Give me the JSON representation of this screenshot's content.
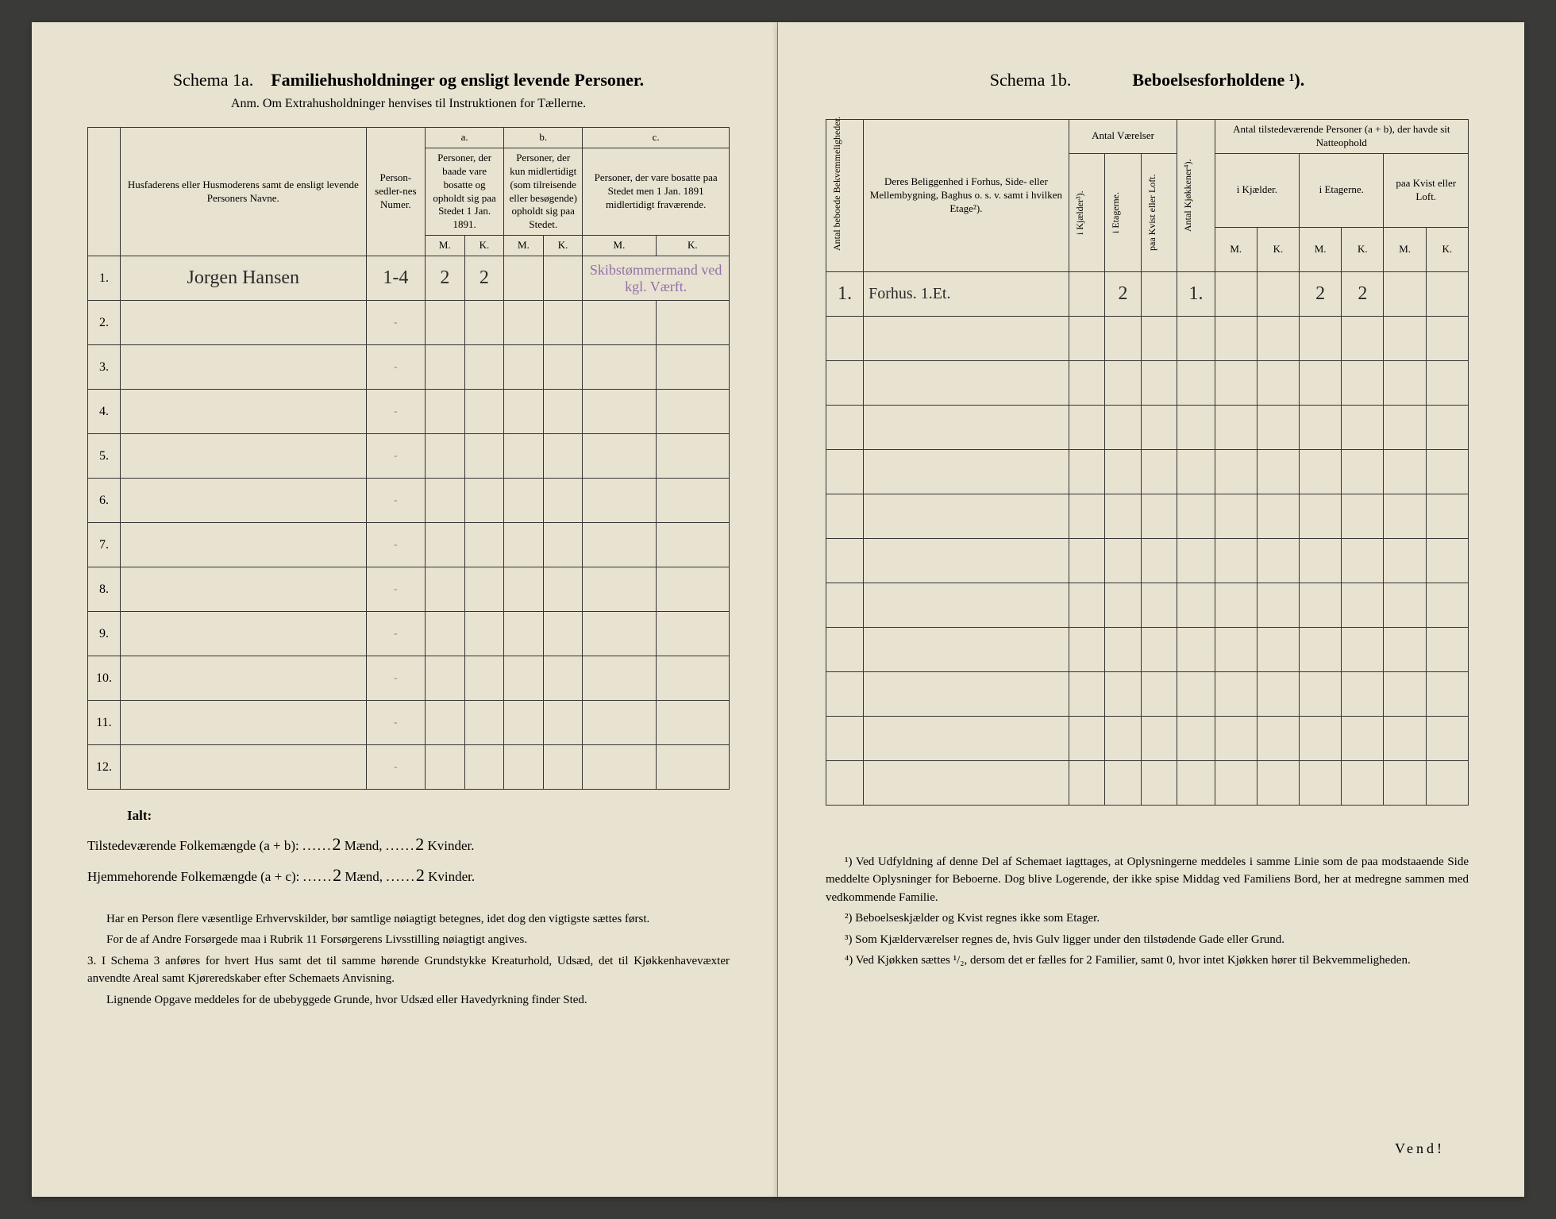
{
  "left": {
    "schema": "Schema 1a.",
    "title": "Familiehusholdninger og ensligt levende Personer.",
    "subtitle": "Anm. Om Extrahusholdninger henvises til Instruktionen for Tællerne.",
    "headers": {
      "name": "Husfaderens eller Husmoderens samt de ensligt levende Personers Navne.",
      "personNum": "Person-sedler-nes Numer.",
      "a_label": "a.",
      "a_text": "Personer, der baade vare bosatte og opholdt sig paa Stedet 1 Jan. 1891.",
      "b_label": "b.",
      "b_text": "Personer, der kun midlertidigt (som tilreisende eller besøgende) opholdt sig paa Stedet.",
      "c_label": "c.",
      "c_text": "Personer, der vare bosatte paa Stedet men 1 Jan. 1891 midlertidigt fraværende.",
      "M": "M.",
      "K": "K."
    },
    "rows": [
      {
        "n": "1.",
        "name": "Jorgen Hansen",
        "pnum": "1-4",
        "aM": "2",
        "aK": "2",
        "bM": "",
        "bK": "",
        "cM": "",
        "cK": "",
        "note": "Skibstømmermand ved kgl. Værft."
      },
      {
        "n": "2.",
        "name": "",
        "pnum": "-",
        "aM": "",
        "aK": "",
        "bM": "",
        "bK": "",
        "cM": "",
        "cK": "",
        "note": ""
      },
      {
        "n": "3.",
        "name": "",
        "pnum": "-",
        "aM": "",
        "aK": "",
        "bM": "",
        "bK": "",
        "cM": "",
        "cK": "",
        "note": ""
      },
      {
        "n": "4.",
        "name": "",
        "pnum": "-",
        "aM": "",
        "aK": "",
        "bM": "",
        "bK": "",
        "cM": "",
        "cK": "",
        "note": ""
      },
      {
        "n": "5.",
        "name": "",
        "pnum": "-",
        "aM": "",
        "aK": "",
        "bM": "",
        "bK": "",
        "cM": "",
        "cK": "",
        "note": ""
      },
      {
        "n": "6.",
        "name": "",
        "pnum": "-",
        "aM": "",
        "aK": "",
        "bM": "",
        "bK": "",
        "cM": "",
        "cK": "",
        "note": ""
      },
      {
        "n": "7.",
        "name": "",
        "pnum": "-",
        "aM": "",
        "aK": "",
        "bM": "",
        "bK": "",
        "cM": "",
        "cK": "",
        "note": ""
      },
      {
        "n": "8.",
        "name": "",
        "pnum": "-",
        "aM": "",
        "aK": "",
        "bM": "",
        "bK": "",
        "cM": "",
        "cK": "",
        "note": ""
      },
      {
        "n": "9.",
        "name": "",
        "pnum": "-",
        "aM": "",
        "aK": "",
        "bM": "",
        "bK": "",
        "cM": "",
        "cK": "",
        "note": ""
      },
      {
        "n": "10.",
        "name": "",
        "pnum": "-",
        "aM": "",
        "aK": "",
        "bM": "",
        "bK": "",
        "cM": "",
        "cK": "",
        "note": ""
      },
      {
        "n": "11.",
        "name": "",
        "pnum": "-",
        "aM": "",
        "aK": "",
        "bM": "",
        "bK": "",
        "cM": "",
        "cK": "",
        "note": ""
      },
      {
        "n": "12.",
        "name": "",
        "pnum": "-",
        "aM": "",
        "aK": "",
        "bM": "",
        "bK": "",
        "cM": "",
        "cK": "",
        "note": ""
      }
    ],
    "totals": {
      "ialt": "Ialt:",
      "line1_label": "Tilstedeværende Folkemængde (a + b):",
      "line1_m": "2",
      "line1_k": "2",
      "line2_label": "Hjemmehorende Folkemængde (a + c):",
      "line2_m": "2",
      "line2_k": "2",
      "maend": "Mænd,",
      "kvinder": "Kvinder."
    },
    "notes": {
      "p1": "Har en Person flere væsentlige Erhvervskilder, bør samtlige nøiagtigt betegnes, idet dog den vigtigste sættes først.",
      "p2": "For de af Andre Forsørgede maa i Rubrik 11 Forsørgerens Livsstilling nøiagtigt angives.",
      "p3": "3. I Schema 3 anføres for hvert Hus samt det til samme hørende Grundstykke Kreaturhold, Udsæd, det til Kjøkkenhavevæxter anvendte Areal samt Kjøreredskaber efter Schemaets Anvisning.",
      "p4": "Lignende Opgave meddeles for de ubebyggede Grunde, hvor Udsæd eller Havedyrkning finder Sted."
    }
  },
  "right": {
    "schema": "Schema 1b.",
    "title": "Beboelsesforholdene ¹).",
    "headers": {
      "bekv": "Antal beboede Bekvemmeligheder.",
      "belig": "Deres Beliggenhed i Forhus, Side- eller Mellembygning, Baghus o. s. v. samt i hvilken Etage²).",
      "antalVaer": "Antal Værelser",
      "kjaelder": "i Kjælder³).",
      "etagerne": "i Etagerne.",
      "kvist": "paa Kvist eller Loft.",
      "kjokken": "Antal Kjøkkener⁴).",
      "tilstede": "Antal tilstedeværende Personer (a + b), der havde sit Natteophold",
      "iKjael": "i Kjælder.",
      "iEtag": "i Etagerne.",
      "paaKvist": "paa Kvist eller Loft.",
      "M": "M.",
      "K": "K."
    },
    "rows": [
      {
        "bekv": "1.",
        "belig": "Forhus. 1.Et.",
        "kj": "",
        "et": "2",
        "kv": "",
        "kok": "1.",
        "kjM": "",
        "kjK": "",
        "etM": "2",
        "etK": "2",
        "kvM": "",
        "kvK": ""
      },
      {
        "bekv": "",
        "belig": "",
        "kj": "",
        "et": "",
        "kv": "",
        "kok": "",
        "kjM": "",
        "kjK": "",
        "etM": "",
        "etK": "",
        "kvM": "",
        "kvK": ""
      },
      {
        "bekv": "",
        "belig": "",
        "kj": "",
        "et": "",
        "kv": "",
        "kok": "",
        "kjM": "",
        "kjK": "",
        "etM": "",
        "etK": "",
        "kvM": "",
        "kvK": ""
      },
      {
        "bekv": "",
        "belig": "",
        "kj": "",
        "et": "",
        "kv": "",
        "kok": "",
        "kjM": "",
        "kjK": "",
        "etM": "",
        "etK": "",
        "kvM": "",
        "kvK": ""
      },
      {
        "bekv": "",
        "belig": "",
        "kj": "",
        "et": "",
        "kv": "",
        "kok": "",
        "kjM": "",
        "kjK": "",
        "etM": "",
        "etK": "",
        "kvM": "",
        "kvK": ""
      },
      {
        "bekv": "",
        "belig": "",
        "kj": "",
        "et": "",
        "kv": "",
        "kok": "",
        "kjM": "",
        "kjK": "",
        "etM": "",
        "etK": "",
        "kvM": "",
        "kvK": ""
      },
      {
        "bekv": "",
        "belig": "",
        "kj": "",
        "et": "",
        "kv": "",
        "kok": "",
        "kjM": "",
        "kjK": "",
        "etM": "",
        "etK": "",
        "kvM": "",
        "kvK": ""
      },
      {
        "bekv": "",
        "belig": "",
        "kj": "",
        "et": "",
        "kv": "",
        "kok": "",
        "kjM": "",
        "kjK": "",
        "etM": "",
        "etK": "",
        "kvM": "",
        "kvK": ""
      },
      {
        "bekv": "",
        "belig": "",
        "kj": "",
        "et": "",
        "kv": "",
        "kok": "",
        "kjM": "",
        "kjK": "",
        "etM": "",
        "etK": "",
        "kvM": "",
        "kvK": ""
      },
      {
        "bekv": "",
        "belig": "",
        "kj": "",
        "et": "",
        "kv": "",
        "kok": "",
        "kjM": "",
        "kjK": "",
        "etM": "",
        "etK": "",
        "kvM": "",
        "kvK": ""
      },
      {
        "bekv": "",
        "belig": "",
        "kj": "",
        "et": "",
        "kv": "",
        "kok": "",
        "kjM": "",
        "kjK": "",
        "etM": "",
        "etK": "",
        "kvM": "",
        "kvK": ""
      },
      {
        "bekv": "",
        "belig": "",
        "kj": "",
        "et": "",
        "kv": "",
        "kok": "",
        "kjM": "",
        "kjK": "",
        "etM": "",
        "etK": "",
        "kvM": "",
        "kvK": ""
      }
    ],
    "notes": {
      "n1": "¹) Ved Udfyldning af denne Del af Schemaet iagttages, at Oplysningerne meddeles i samme Linie som de paa modstaaende Side meddelte Oplysninger for Beboerne. Dog blive Logerende, der ikke spise Middag ved Familiens Bord, her at medregne sammen med vedkommende Familie.",
      "n2": "²) Beboelseskjælder og Kvist regnes ikke som Etager.",
      "n3": "³) Som Kjælderværelser regnes de, hvis Gulv ligger under den tilstødende Gade eller Grund.",
      "n4": "⁴) Ved Kjøkken sættes ¹/₂, dersom det er fælles for 2 Familier, samt 0, hvor intet Kjøkken hører til Bekvemmeligheden."
    },
    "vend": "Vend!"
  },
  "style": {
    "paper_color": "#e8e2d0",
    "ink_color": "#1a1a1a",
    "handwriting_color": "#2a2a2a",
    "purple_ink": "#9370a8",
    "border_color": "#333333"
  }
}
